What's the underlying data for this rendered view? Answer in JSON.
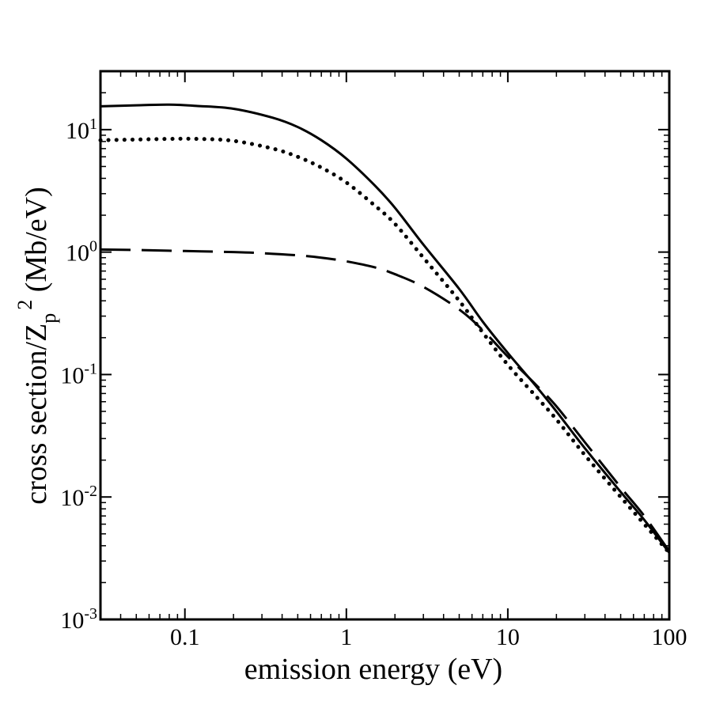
{
  "chart_data": {
    "type": "line",
    "title": "",
    "xlabel": "emission energy (eV)",
    "ylabel": {
      "main": "cross section/Z",
      "subscript": "p",
      "superscript": "2",
      "unit": " (Mb/eV)"
    },
    "x_scale": "log",
    "y_scale": "log",
    "xlim": [
      0.03,
      100
    ],
    "ylim": [
      0.001,
      30
    ],
    "x_ticks": [
      {
        "value": 0.1,
        "label": "0.1"
      },
      {
        "value": 1,
        "label": "1"
      },
      {
        "value": 10,
        "label": "10"
      },
      {
        "value": 100,
        "label": "100"
      }
    ],
    "y_ticks": [
      {
        "value": 0.001,
        "base": "10",
        "exp": "-3"
      },
      {
        "value": 0.01,
        "base": "10",
        "exp": "-2"
      },
      {
        "value": 0.1,
        "base": "10",
        "exp": "-1"
      },
      {
        "value": 1,
        "base": "10",
        "exp": "0"
      },
      {
        "value": 10,
        "base": "10",
        "exp": "1"
      }
    ],
    "grid": false,
    "legend": "none",
    "series": [
      {
        "name": "solid",
        "style": "solid",
        "x": [
          0.03,
          0.05,
          0.08,
          0.12,
          0.2,
          0.35,
          0.5,
          0.7,
          1,
          1.5,
          2,
          3,
          5,
          7,
          10,
          15,
          20,
          30,
          50,
          70,
          100
        ],
        "y": [
          15.5,
          15.8,
          16.0,
          15.6,
          14.8,
          12.5,
          10.5,
          8.2,
          5.8,
          3.5,
          2.3,
          1.15,
          0.5,
          0.27,
          0.15,
          0.08,
          0.05,
          0.025,
          0.011,
          0.0065,
          0.0035
        ]
      },
      {
        "name": "dotted",
        "style": "dotted",
        "x": [
          0.03,
          0.05,
          0.08,
          0.12,
          0.2,
          0.35,
          0.5,
          0.7,
          1,
          1.5,
          2,
          3,
          5,
          7,
          10,
          15,
          20,
          30,
          50,
          70,
          100
        ],
        "y": [
          8.2,
          8.3,
          8.4,
          8.4,
          8.1,
          7.0,
          6.0,
          4.9,
          3.7,
          2.4,
          1.7,
          0.9,
          0.4,
          0.22,
          0.12,
          0.066,
          0.043,
          0.022,
          0.01,
          0.006,
          0.0035
        ]
      },
      {
        "name": "dashed",
        "style": "dashed",
        "x": [
          0.03,
          0.05,
          0.1,
          0.2,
          0.3,
          0.5,
          0.7,
          1,
          1.5,
          2,
          3,
          5,
          7,
          10,
          15,
          20,
          30,
          50,
          70,
          100
        ],
        "y": [
          1.05,
          1.04,
          1.02,
          1.0,
          0.98,
          0.94,
          0.9,
          0.84,
          0.75,
          0.66,
          0.52,
          0.34,
          0.23,
          0.14,
          0.082,
          0.055,
          0.028,
          0.012,
          0.007,
          0.0036
        ]
      }
    ]
  }
}
